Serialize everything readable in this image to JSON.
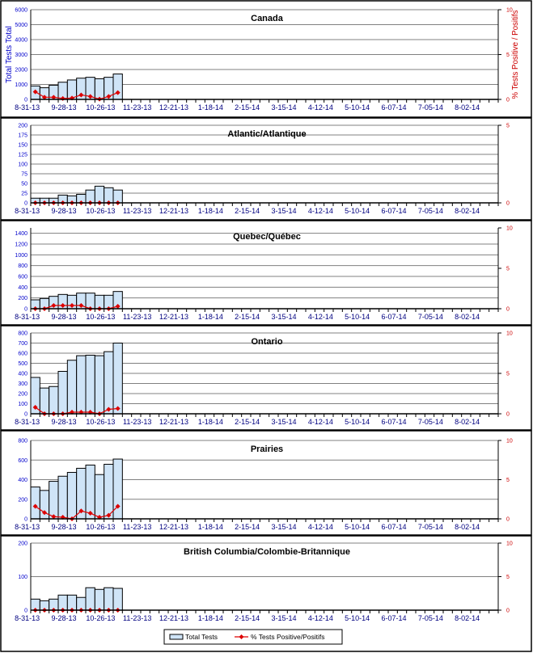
{
  "colors": {
    "bar": "#cfe4f7",
    "line": "#dd0000",
    "grid": "#808080"
  },
  "chart_data": [
    {
      "type": "bar+line",
      "title": "Canada",
      "ylabel": "Total Tests Total",
      "y2label": "% Tests Positive / Positifs",
      "ylim": [
        0,
        6000
      ],
      "yticks": [
        0,
        1000,
        2000,
        3000,
        4000,
        5000,
        6000
      ],
      "y2lim": [
        0,
        10
      ],
      "y2ticks": [
        0,
        5,
        10
      ],
      "totals": [
        900,
        780,
        950,
        1150,
        1300,
        1420,
        1480,
        1380,
        1480,
        1700
      ],
      "pct": [
        0.85,
        0.24,
        0.24,
        0.1,
        0.15,
        0.5,
        0.33,
        0.03,
        0.33,
        0.76
      ]
    },
    {
      "type": "bar+line",
      "title": "Atlantic/Atlantique",
      "ylim": [
        0,
        200
      ],
      "yticks": [
        0,
        25,
        50,
        75,
        100,
        125,
        150,
        175,
        200
      ],
      "y2lim": [
        0,
        5
      ],
      "y2ticks": [
        0,
        5
      ],
      "totals": [
        12,
        12,
        12,
        20,
        18,
        22,
        33,
        43,
        39,
        33
      ],
      "pct": [
        0,
        0,
        0,
        0,
        0,
        0,
        0,
        0,
        0,
        0
      ]
    },
    {
      "type": "bar+line",
      "title": "Quebec/Québec",
      "ylim": [
        0,
        1500
      ],
      "yticks": [
        0,
        200,
        400,
        600,
        800,
        1000,
        1200,
        1400
      ],
      "y2lim": [
        0,
        10
      ],
      "y2ticks": [
        0,
        5,
        10
      ],
      "totals": [
        165,
        190,
        230,
        265,
        250,
        290,
        290,
        250,
        250,
        320
      ],
      "pct": [
        0,
        0,
        0.4,
        0.4,
        0.4,
        0.4,
        0,
        0,
        0,
        0.3
      ]
    },
    {
      "type": "bar+line",
      "title": "Ontario",
      "ylim": [
        0,
        800
      ],
      "yticks": [
        0,
        100,
        200,
        300,
        400,
        500,
        600,
        700,
        800
      ],
      "y2lim": [
        0,
        10
      ],
      "y2ticks": [
        0,
        5,
        10
      ],
      "totals": [
        360,
        255,
        270,
        420,
        530,
        575,
        580,
        575,
        615,
        700
      ],
      "pct": [
        0.8,
        0,
        0,
        0,
        0.2,
        0.2,
        0.2,
        0,
        0.55,
        0.65
      ]
    },
    {
      "type": "bar+line",
      "title": "Prairies",
      "ylim": [
        0,
        800
      ],
      "yticks": [
        0,
        200,
        400,
        600,
        800
      ],
      "y2lim": [
        0,
        10
      ],
      "y2ticks": [
        0,
        5,
        10
      ],
      "totals": [
        325,
        290,
        383,
        435,
        474,
        516,
        549,
        452,
        557,
        610
      ],
      "pct": [
        1.6,
        0.8,
        0.28,
        0.2,
        0,
        1.0,
        0.72,
        0.2,
        0.45,
        1.6
      ]
    },
    {
      "type": "bar+line",
      "title": "British Columbia/Colombie-Britannique",
      "ylim": [
        0,
        200
      ],
      "yticks": [
        0,
        100,
        200
      ],
      "y2lim": [
        0,
        10
      ],
      "y2ticks": [
        0,
        5,
        10
      ],
      "totals": [
        33,
        28,
        33,
        45,
        45,
        38,
        67,
        62,
        67,
        65
      ],
      "pct": [
        0,
        0,
        0,
        0,
        0,
        0,
        0,
        0,
        0,
        0
      ]
    }
  ],
  "x_labels": [
    "8-31-13",
    "9-28-13",
    "10-26-13",
    "11-23-13",
    "12-21-13",
    "1-18-14",
    "2-15-14",
    "3-15-14",
    "4-12-14",
    "5-10-14",
    "6-07-14",
    "7-05-14",
    "8-02-14"
  ],
  "weeks": 51,
  "legend": {
    "bars": "Total Tests",
    "line": "% Tests Positive/Positifs"
  }
}
